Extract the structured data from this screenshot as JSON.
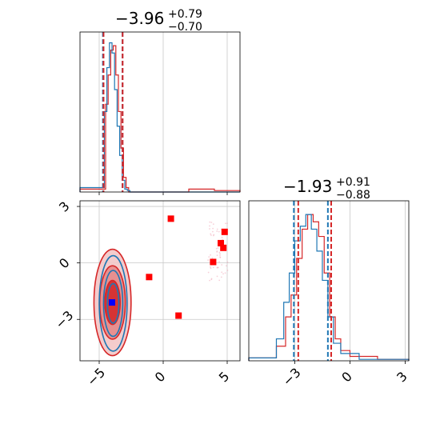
{
  "colors": {
    "red": "#d62728",
    "blue": "#1f77b4",
    "marker_blue": "#0000ff",
    "marker_red": "#ff0000",
    "grid": "#c8c8c8"
  },
  "chart_data": [
    {
      "type": "histogram",
      "panel": "param-1 marginal",
      "title": {
        "median": "−3.96",
        "plus": "+0.79",
        "minus": "−0.70"
      },
      "x_range": [
        -6.5,
        6.0
      ],
      "xticks": [
        -5,
        0,
        5
      ],
      "quantile_lines": {
        "red": [
          -4.66,
          -3.17
        ],
        "blue": [
          -4.71,
          -3.18
        ]
      },
      "series": [
        {
          "color": "red",
          "bin_edges": [
            -6.5,
            -4.5,
            -4.3,
            -4.1,
            -3.9,
            -3.7,
            -3.5,
            -3.3,
            -3.1,
            -2.9,
            -2.7,
            2.0,
            4.0,
            6.0
          ],
          "heights": [
            0.02,
            0.6,
            0.8,
            0.97,
            1.0,
            0.8,
            0.55,
            0.3,
            0.1,
            0.03,
            0.0,
            0.02,
            0.01
          ]
        },
        {
          "color": "blue",
          "bin_edges": [
            -6.5,
            -4.6,
            -4.4,
            -4.2,
            -4.0,
            -3.8,
            -3.6,
            -3.4,
            -3.2,
            -3.0,
            -2.8,
            -2.6,
            6.0
          ],
          "heights": [
            0.03,
            0.55,
            0.85,
            1.02,
            0.95,
            0.7,
            0.45,
            0.25,
            0.08,
            0.02,
            0.01,
            0.0
          ]
        }
      ]
    },
    {
      "type": "histogram",
      "panel": "param-2 marginal",
      "title": {
        "median": "−1.93",
        "plus": "+0.91",
        "minus": "−0.88"
      },
      "x_range": [
        -5.5,
        3.2
      ],
      "xticks": [
        -3,
        0,
        3
      ],
      "xtick_labels": [
        "−3",
        "0",
        "3"
      ],
      "quantile_lines": {
        "red": [
          -2.81,
          -1.02
        ],
        "blue": [
          -3.05,
          -1.2
        ]
      },
      "series": [
        {
          "color": "red",
          "bin_edges": [
            -5.5,
            -4.0,
            -3.5,
            -3.2,
            -2.9,
            -2.6,
            -2.3,
            -2.0,
            -1.7,
            -1.4,
            -1.1,
            -0.8,
            -0.5,
            0.0,
            1.5,
            3.2
          ],
          "heights": [
            0.02,
            0.1,
            0.3,
            0.45,
            0.7,
            0.9,
            1.0,
            0.95,
            0.85,
            0.6,
            0.3,
            0.15,
            0.07,
            0.03,
            0.01
          ]
        },
        {
          "color": "blue",
          "bin_edges": [
            -5.5,
            -4.0,
            -3.6,
            -3.3,
            -3.0,
            -2.7,
            -2.4,
            -2.1,
            -1.8,
            -1.5,
            -1.2,
            -0.9,
            -0.5,
            0.5,
            3.2
          ],
          "heights": [
            0.02,
            0.15,
            0.4,
            0.6,
            0.82,
            0.92,
            1.0,
            0.9,
            0.75,
            0.55,
            0.3,
            0.12,
            0.05,
            0.01
          ]
        }
      ]
    },
    {
      "type": "contour",
      "panel": "param-1 vs param-2 joint",
      "x_range": [
        -6.5,
        6.0
      ],
      "y_range": [
        -5.2,
        3.3
      ],
      "xticks": [
        -5,
        0,
        5
      ],
      "xtick_labels": [
        "−5",
        "0",
        "5"
      ],
      "yticks": [
        -3,
        0,
        3
      ],
      "ytick_labels": [
        "−3",
        "0",
        "3"
      ],
      "contours": {
        "center": [
          -3.96,
          -2.1
        ],
        "red_sigma": [
          1.0,
          1.95
        ],
        "blue_sigma": [
          0.75,
          1.75
        ],
        "levels": [
          0.6,
          1.0,
          1.45
        ]
      },
      "square_points": [
        {
          "x": 0.6,
          "y": 2.35
        },
        {
          "x": 4.5,
          "y": 1.05
        },
        {
          "x": 4.7,
          "y": 0.8
        },
        {
          "x": 4.8,
          "y": 1.65
        },
        {
          "x": 3.9,
          "y": 0.05
        },
        {
          "x": -1.1,
          "y": -0.75
        },
        {
          "x": 1.2,
          "y": -2.8
        }
      ],
      "truth_point": {
        "x": -4.0,
        "y": -2.1
      }
    }
  ]
}
